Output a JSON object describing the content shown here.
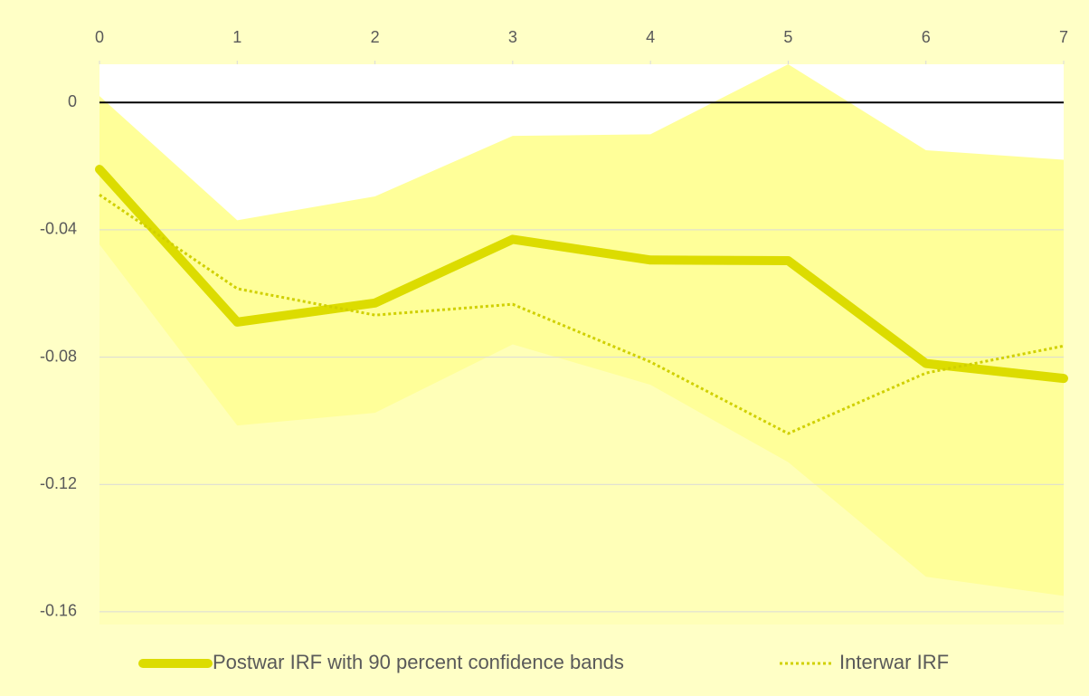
{
  "chart_data": {
    "type": "line",
    "x": [
      0,
      1,
      2,
      3,
      4,
      5,
      6,
      7
    ],
    "xlim": [
      0,
      7
    ],
    "xticks": [
      0,
      1,
      2,
      3,
      4,
      5,
      6,
      7
    ],
    "ylim": [
      -0.164,
      0.012
    ],
    "yticks": [
      {
        "value": 0,
        "label": "0"
      },
      -0.04,
      -0.08,
      -0.12,
      -0.16
    ],
    "grid": true,
    "band": {
      "color": "#ffff99",
      "upper": [
        0.002,
        -0.037,
        -0.0295,
        -0.0105,
        -0.01,
        0.012,
        -0.015,
        -0.018
      ],
      "lower": [
        -0.0446,
        -0.1015,
        -0.0975,
        -0.076,
        -0.0887,
        -0.113,
        -0.149,
        -0.155
      ]
    },
    "series": [
      {
        "name": "Postwar IRF with 90 percent confidence bands",
        "color": "#dcdc00",
        "style": "solid",
        "values": [
          -0.021,
          -0.069,
          -0.063,
          -0.043,
          -0.0495,
          -0.0497,
          -0.082,
          -0.0867
        ]
      },
      {
        "name": "Interwar IRF",
        "color": "#d0d000",
        "style": "dotted",
        "values": [
          -0.029,
          -0.0585,
          -0.0668,
          -0.0634,
          -0.0815,
          -0.104,
          -0.085,
          -0.0765
        ]
      }
    ],
    "legend": "bottom"
  }
}
